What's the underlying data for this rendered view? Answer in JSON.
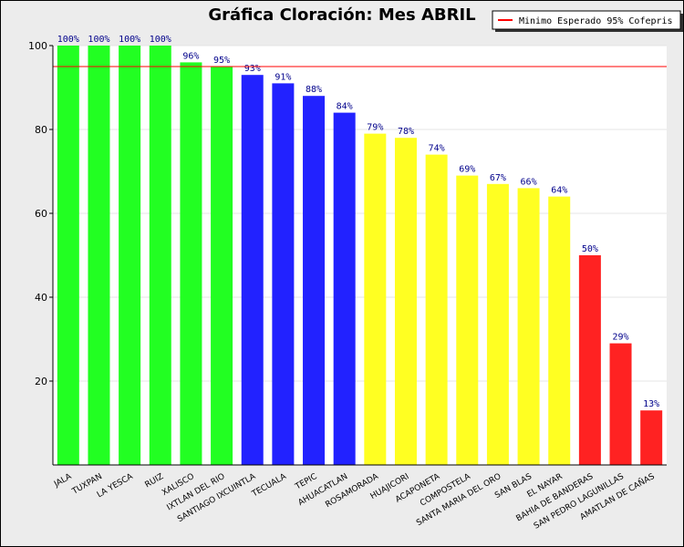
{
  "chart_data": {
    "type": "bar",
    "title": "Gráfica Cloración: Mes ABRIL",
    "xlabel": "",
    "ylabel": "",
    "ylim": [
      0,
      100
    ],
    "yticks": [
      "20",
      "40",
      "60",
      "80",
      "100"
    ],
    "grid": true,
    "legend": {
      "position": "top-right",
      "entries": [
        {
          "label": "Minimo Esperado 95% Cofepris",
          "color": "#ff0000"
        }
      ]
    },
    "reference_line": {
      "value": 95,
      "color": "#ff0000"
    },
    "categories": [
      "JALA",
      "TUXPAN",
      "LA YESCA",
      "RUIZ",
      "XALISCO",
      "IXTLAN DEL RIO",
      "SANTIAGO IXCUINTLA",
      "TECUALA",
      "TEPIC",
      "AHUACATLAN",
      "ROSAMORADA",
      "HUAJICORI",
      "ACAPONETA",
      "COMPOSTELA",
      "SANTA MARIA DEL ORO",
      "SAN BLAS",
      "EL NAYAR",
      "BAHIA DE BANDERAS",
      "SAN PEDRO LAGUNILLAS",
      "AMATLAN DE CAÑAS"
    ],
    "values": [
      100,
      100,
      100,
      100,
      96,
      95,
      93,
      91,
      88,
      84,
      79,
      78,
      74,
      69,
      67,
      66,
      64,
      50,
      29,
      13
    ],
    "data_labels": [
      "100%",
      "100%",
      "100%",
      "100%",
      "96%",
      "95%",
      "93%",
      "91%",
      "88%",
      "84%",
      "79%",
      "78%",
      "74%",
      "69%",
      "67%",
      "66%",
      "64%",
      "50%",
      "29%",
      "13%"
    ],
    "colors": [
      "#22ff22",
      "#22ff22",
      "#22ff22",
      "#22ff22",
      "#22ff22",
      "#22ff22",
      "#2222ff",
      "#2222ff",
      "#2222ff",
      "#2222ff",
      "#ffff22",
      "#ffff22",
      "#ffff22",
      "#ffff22",
      "#ffff22",
      "#ffff22",
      "#ffff22",
      "#ff2222",
      "#ff2222",
      "#ff2222"
    ]
  }
}
